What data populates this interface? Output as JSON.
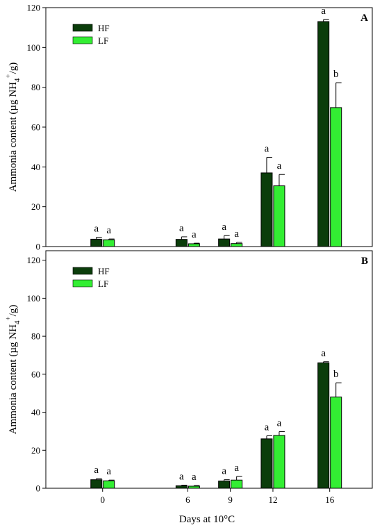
{
  "figure": {
    "xlabel": "Days at 10°C"
  },
  "colors": {
    "HF": "#0b3d0b",
    "LF": "#33ee33",
    "axis": "#000000"
  },
  "chart_data": [
    {
      "type": "bar",
      "panel": "A",
      "ylabel": "Ammonia content (µg NH4+/g)",
      "ylabel_parts": {
        "prefix": "Ammonia content (µg NH",
        "sub": "4",
        "sup": "+",
        "suffix": "/g)"
      },
      "ylim": [
        0,
        120
      ],
      "yticks": [
        0,
        20,
        40,
        60,
        80,
        100,
        120
      ],
      "x": [
        0,
        6,
        9,
        12,
        16
      ],
      "xlim": [
        -4,
        19
      ],
      "legend_position": "top-left",
      "series": [
        {
          "name": "HF",
          "values": [
            3.7,
            3.6,
            3.8,
            37.0,
            113.0
          ],
          "errors": [
            1.0,
            1.3,
            1.7,
            7.8,
            1.0
          ],
          "labels": [
            "a",
            "a",
            "a",
            "a",
            "a"
          ]
        },
        {
          "name": "LF",
          "values": [
            3.4,
            1.4,
            1.5,
            30.5,
            69.8
          ],
          "errors": [
            0.4,
            0.3,
            0.6,
            5.7,
            12.5
          ],
          "labels": [
            "a",
            "a",
            "a",
            "a",
            "b"
          ]
        }
      ]
    },
    {
      "type": "bar",
      "panel": "B",
      "ylabel": "Ammonia content (µg NH4+/g)",
      "ylabel_parts": {
        "prefix": "Ammonia content (µg NH",
        "sub": "4",
        "sup": "+",
        "suffix": "/g)"
      },
      "ylim": [
        0,
        125
      ],
      "yticks": [
        0,
        20,
        40,
        60,
        80,
        100,
        120
      ],
      "x": [
        0,
        6,
        9,
        12,
        16
      ],
      "xlim": [
        -4,
        19
      ],
      "legend_position": "top-left",
      "series": [
        {
          "name": "HF",
          "values": [
            4.5,
            1.3,
            3.8,
            26.0,
            66.0
          ],
          "errors": [
            0.6,
            0.3,
            0.7,
            1.6,
            0.6
          ],
          "labels": [
            "a",
            "a",
            "a",
            "a",
            "a"
          ]
        },
        {
          "name": "LF",
          "values": [
            3.9,
            1.1,
            4.3,
            27.8,
            48.0
          ],
          "errors": [
            0.4,
            0.3,
            1.9,
            2.0,
            7.5
          ],
          "labels": [
            "a",
            "a",
            "a",
            "a",
            "b"
          ]
        }
      ]
    }
  ]
}
